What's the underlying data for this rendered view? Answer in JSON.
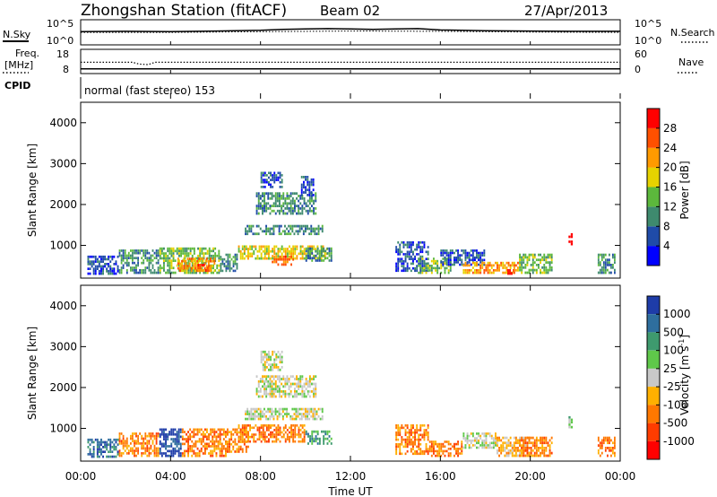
{
  "header": {
    "title": "Zhongshan Station (fitACF)",
    "beam": "Beam 02",
    "date": "27/Apr/2013"
  },
  "left_labels": {
    "nsky": "N.Sky",
    "freq": "Freq.",
    "freq_unit": "[MHz]",
    "cpid": "CPID"
  },
  "right_labels": {
    "nsearch": "N.Search",
    "nave": "Nave"
  },
  "cpid_text": "normal (fast stereo) 153",
  "xaxis_label": "Time UT",
  "chart_data": [
    {
      "type": "line",
      "name": "noise",
      "left_ticks": [
        "10^5",
        "10^0"
      ],
      "right_ticks": [
        "10^5",
        "10^0"
      ],
      "x_range_hours": [
        0,
        24
      ],
      "series": [
        {
          "name": "N.Sky",
          "x": [
            0,
            2,
            4,
            6,
            8,
            9,
            10,
            11,
            12,
            13,
            14,
            15,
            16,
            18,
            20,
            22,
            24
          ],
          "y": [
            3.6,
            3.7,
            3.6,
            3.8,
            4.0,
            4.3,
            4.4,
            4.5,
            4.4,
            4.3,
            4.4,
            4.5,
            4.1,
            3.9,
            3.8,
            3.7,
            3.7
          ]
        },
        {
          "name": "N.Search",
          "x": [
            0,
            4,
            8,
            12,
            16,
            20,
            24
          ],
          "y": [
            3.4,
            3.4,
            3.6,
            3.8,
            3.7,
            3.5,
            3.4
          ]
        }
      ]
    },
    {
      "type": "line",
      "name": "frequency",
      "left_ticks": [
        "18",
        "8"
      ],
      "right_ticks": [
        "60",
        "0"
      ],
      "x_range_hours": [
        0,
        24
      ],
      "series": [
        {
          "name": "Freq.",
          "x": [
            0,
            2.3,
            2.6,
            3,
            3.3,
            24
          ],
          "y": [
            12.3,
            12.3,
            11.3,
            11.0,
            12.3,
            12.3
          ]
        },
        {
          "name": "Nave",
          "x": [
            0,
            24
          ],
          "y": [
            4,
            4
          ]
        }
      ]
    },
    {
      "type": "heatmap",
      "name": "power",
      "ylabel": "Slant Range [km]",
      "y_ticks": [
        "1000",
        "2000",
        "3000",
        "4000"
      ],
      "ylim": [
        200,
        4500
      ],
      "colorbar_label": "Power [dB]",
      "colorbar_ticks": [
        "4",
        "8",
        "12",
        "16",
        "20",
        "24",
        "28"
      ],
      "colorbar_range": [
        0,
        32
      ],
      "colors": [
        "#0000ff",
        "#1f4ba8",
        "#3e8a6e",
        "#5cb83c",
        "#e6d200",
        "#ff9a00",
        "#ff5000",
        "#ff0000"
      ],
      "patches": [
        {
          "t0": 0.3,
          "t1": 1.7,
          "r0": 280,
          "r1": 750,
          "v": 6
        },
        {
          "t0": 1.7,
          "t1": 3.5,
          "r0": 300,
          "r1": 900,
          "v": 10
        },
        {
          "t0": 3.5,
          "t1": 6.2,
          "r0": 300,
          "r1": 950,
          "v": 14
        },
        {
          "t0": 4.3,
          "t1": 6.0,
          "r0": 350,
          "r1": 700,
          "v": 20
        },
        {
          "t0": 5.2,
          "t1": 5.7,
          "r0": 350,
          "r1": 550,
          "v": 26
        },
        {
          "t0": 6.2,
          "t1": 7.0,
          "r0": 350,
          "r1": 800,
          "v": 8
        },
        {
          "t0": 7.0,
          "t1": 11.0,
          "r0": 650,
          "r1": 1000,
          "v": 16
        },
        {
          "t0": 8.5,
          "t1": 9.5,
          "r0": 500,
          "r1": 750,
          "v": 24
        },
        {
          "t0": 10.0,
          "t1": 11.2,
          "r0": 600,
          "r1": 950,
          "v": 8
        },
        {
          "t0": 7.3,
          "t1": 10.8,
          "r0": 1250,
          "r1": 1500,
          "v": 10
        },
        {
          "t0": 7.8,
          "t1": 10.5,
          "r0": 1750,
          "r1": 2300,
          "v": 8
        },
        {
          "t0": 8.0,
          "t1": 9.0,
          "r0": 2400,
          "r1": 2800,
          "v": 6
        },
        {
          "t0": 9.8,
          "t1": 10.4,
          "r0": 2200,
          "r1": 2700,
          "v": 5
        },
        {
          "t0": 14.0,
          "t1": 15.5,
          "r0": 350,
          "r1": 1100,
          "v": 6
        },
        {
          "t0": 15.0,
          "t1": 16.5,
          "r0": 300,
          "r1": 700,
          "v": 12
        },
        {
          "t0": 16.0,
          "t1": 18.0,
          "r0": 500,
          "r1": 900,
          "v": 6
        },
        {
          "t0": 17.0,
          "t1": 19.5,
          "r0": 300,
          "r1": 600,
          "v": 20
        },
        {
          "t0": 18.9,
          "t1": 19.3,
          "r0": 280,
          "r1": 420,
          "v": 28
        },
        {
          "t0": 19.5,
          "t1": 21.0,
          "r0": 300,
          "r1": 800,
          "v": 14
        },
        {
          "t0": 21.7,
          "t1": 21.9,
          "r0": 1000,
          "r1": 1300,
          "v": 28
        },
        {
          "t0": 23.0,
          "t1": 23.8,
          "r0": 300,
          "r1": 800,
          "v": 10
        }
      ]
    },
    {
      "type": "heatmap",
      "name": "velocity",
      "ylabel": "Slant Range [km]",
      "y_ticks": [
        "1000",
        "2000",
        "3000",
        "4000"
      ],
      "ylim": [
        200,
        4500
      ],
      "colorbar_label": "Velocity [m s",
      "colorbar_unit_exp": "-1",
      "colorbar_ticks": [
        "1000",
        "500",
        "100",
        "25",
        "-25",
        "-100",
        "-500",
        "-1000"
      ],
      "colors": [
        "#1e3ca8",
        "#2e6e9e",
        "#3e9a6e",
        "#5fc84a",
        "#c8c8c8",
        "#ffb000",
        "#ff7800",
        "#ff3c00",
        "#ff0000"
      ],
      "patches": [
        {
          "t0": 0.3,
          "t1": 1.7,
          "r0": 280,
          "r1": 750,
          "v": 1
        },
        {
          "t0": 1.7,
          "t1": 3.5,
          "r0": 300,
          "r1": 900,
          "v": 6
        },
        {
          "t0": 3.5,
          "t1": 4.5,
          "r0": 300,
          "r1": 1000,
          "v": 0
        },
        {
          "t0": 4.5,
          "t1": 6.5,
          "r0": 300,
          "r1": 1000,
          "v": 6
        },
        {
          "t0": 6.5,
          "t1": 7.5,
          "r0": 400,
          "r1": 1000,
          "v": 6
        },
        {
          "t0": 7.0,
          "t1": 10.0,
          "r0": 650,
          "r1": 1100,
          "v": 6
        },
        {
          "t0": 10.0,
          "t1": 11.2,
          "r0": 600,
          "r1": 950,
          "v": 2
        },
        {
          "t0": 7.3,
          "t1": 10.8,
          "r0": 1200,
          "r1": 1500,
          "v": 4
        },
        {
          "t0": 7.8,
          "t1": 10.5,
          "r0": 1750,
          "r1": 2300,
          "v": 4
        },
        {
          "t0": 8.0,
          "t1": 9.0,
          "r0": 2400,
          "r1": 2900,
          "v": 4
        },
        {
          "t0": 14.0,
          "t1": 15.5,
          "r0": 350,
          "r1": 1100,
          "v": 6
        },
        {
          "t0": 15.5,
          "t1": 17.0,
          "r0": 300,
          "r1": 700,
          "v": 6
        },
        {
          "t0": 17.0,
          "t1": 18.5,
          "r0": 500,
          "r1": 900,
          "v": 4
        },
        {
          "t0": 18.5,
          "t1": 20.0,
          "r0": 300,
          "r1": 800,
          "v": 5
        },
        {
          "t0": 19.5,
          "t1": 21.0,
          "r0": 300,
          "r1": 800,
          "v": 6
        },
        {
          "t0": 21.7,
          "t1": 21.9,
          "r0": 1000,
          "r1": 1300,
          "v": 3
        },
        {
          "t0": 23.0,
          "t1": 23.8,
          "r0": 300,
          "r1": 800,
          "v": 6
        }
      ]
    }
  ],
  "x_ticks": [
    "00:00",
    "04:00",
    "08:00",
    "12:00",
    "16:00",
    "20:00",
    "00:00"
  ]
}
